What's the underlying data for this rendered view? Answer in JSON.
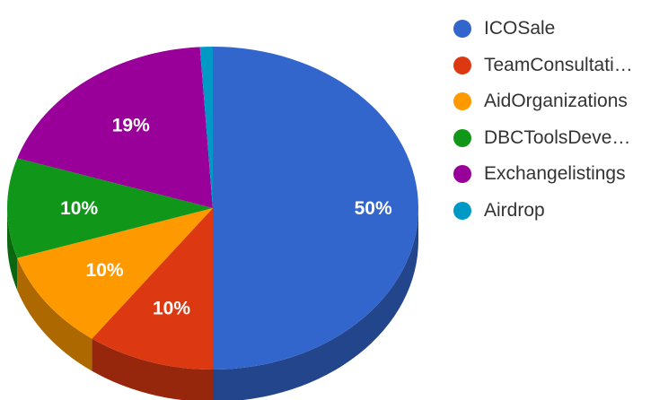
{
  "chart_data": {
    "type": "pie",
    "style": "3d",
    "legend_position": "right",
    "slices": [
      {
        "label": "ICOSale",
        "display_label": "ICOSale",
        "value": 50,
        "value_label": "50%",
        "color": "#3366cc"
      },
      {
        "label": "TeamConsultati…",
        "display_label": "TeamConsultati…",
        "value": 10,
        "value_label": "10%",
        "color": "#dc3912"
      },
      {
        "label": "AidOrganizations",
        "display_label": "AidOrganizations",
        "value": 10,
        "value_label": "10%",
        "color": "#ff9900"
      },
      {
        "label": "DBCToolsDeve…",
        "display_label": "DBCToolsDeve…",
        "value": 10,
        "value_label": "10%",
        "color": "#109618"
      },
      {
        "label": "Exchangelistings",
        "display_label": "Exchangelistings",
        "value": 19,
        "value_label": "19%",
        "color": "#990099"
      },
      {
        "label": "Airdrop",
        "display_label": "Airdrop",
        "value": 1,
        "value_label": "",
        "color": "#0099c6"
      }
    ]
  }
}
